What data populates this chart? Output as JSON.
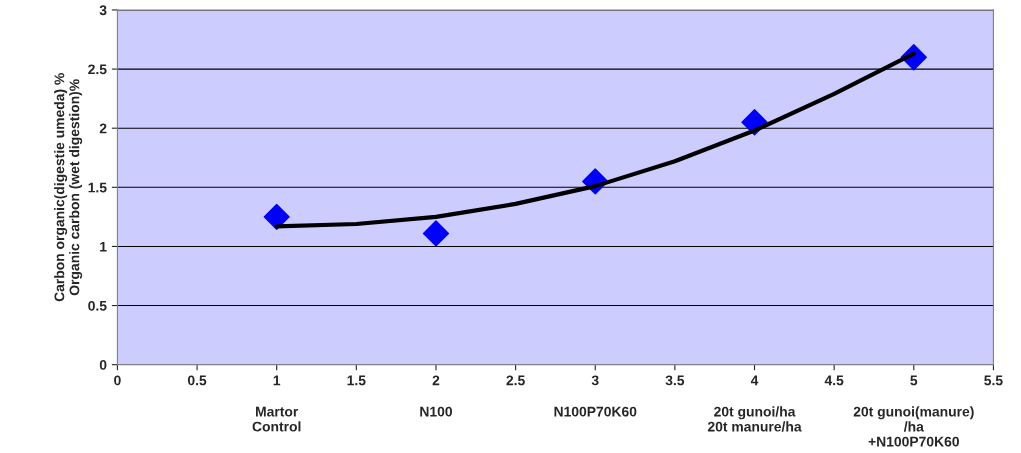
{
  "chart_data": {
    "type": "scatter",
    "ylabel": "Carbon organic(digestie umeda) %\nOrganic carbon (wet digestion)%",
    "series": [
      {
        "color": "#0000ff",
        "marker": "diamond",
        "x": [
          1,
          2,
          3,
          4,
          5
        ],
        "values": [
          1.25,
          1.11,
          1.55,
          2.05,
          2.6
        ]
      },
      {
        "type": "line",
        "color": "#000000",
        "marker": "none",
        "line_style": "solid",
        "x": [
          1,
          1.5,
          2,
          2.5,
          3,
          3.5,
          4,
          4.5,
          5
        ],
        "values": [
          1.17,
          1.19,
          1.25,
          1.36,
          1.51,
          1.72,
          1.98,
          2.29,
          2.63
        ]
      }
    ],
    "xlim": [
      0,
      5.5
    ],
    "xticks": [
      0,
      0.5,
      1,
      1.5,
      2,
      2.5,
      3,
      3.5,
      4,
      4.5,
      5,
      5.5
    ],
    "ylim": [
      0,
      3
    ],
    "yticks": [
      0,
      0.5,
      1,
      1.5,
      2,
      2.5,
      3
    ],
    "grid": "y",
    "legend": false,
    "annotations": [
      "Martor\nControl",
      "N100",
      "N100P70K60",
      "20t gunoi/ha\n20t manure/ha",
      "20t gunoi(manure)\n/ha\n+N100P70K60"
    ]
  }
}
